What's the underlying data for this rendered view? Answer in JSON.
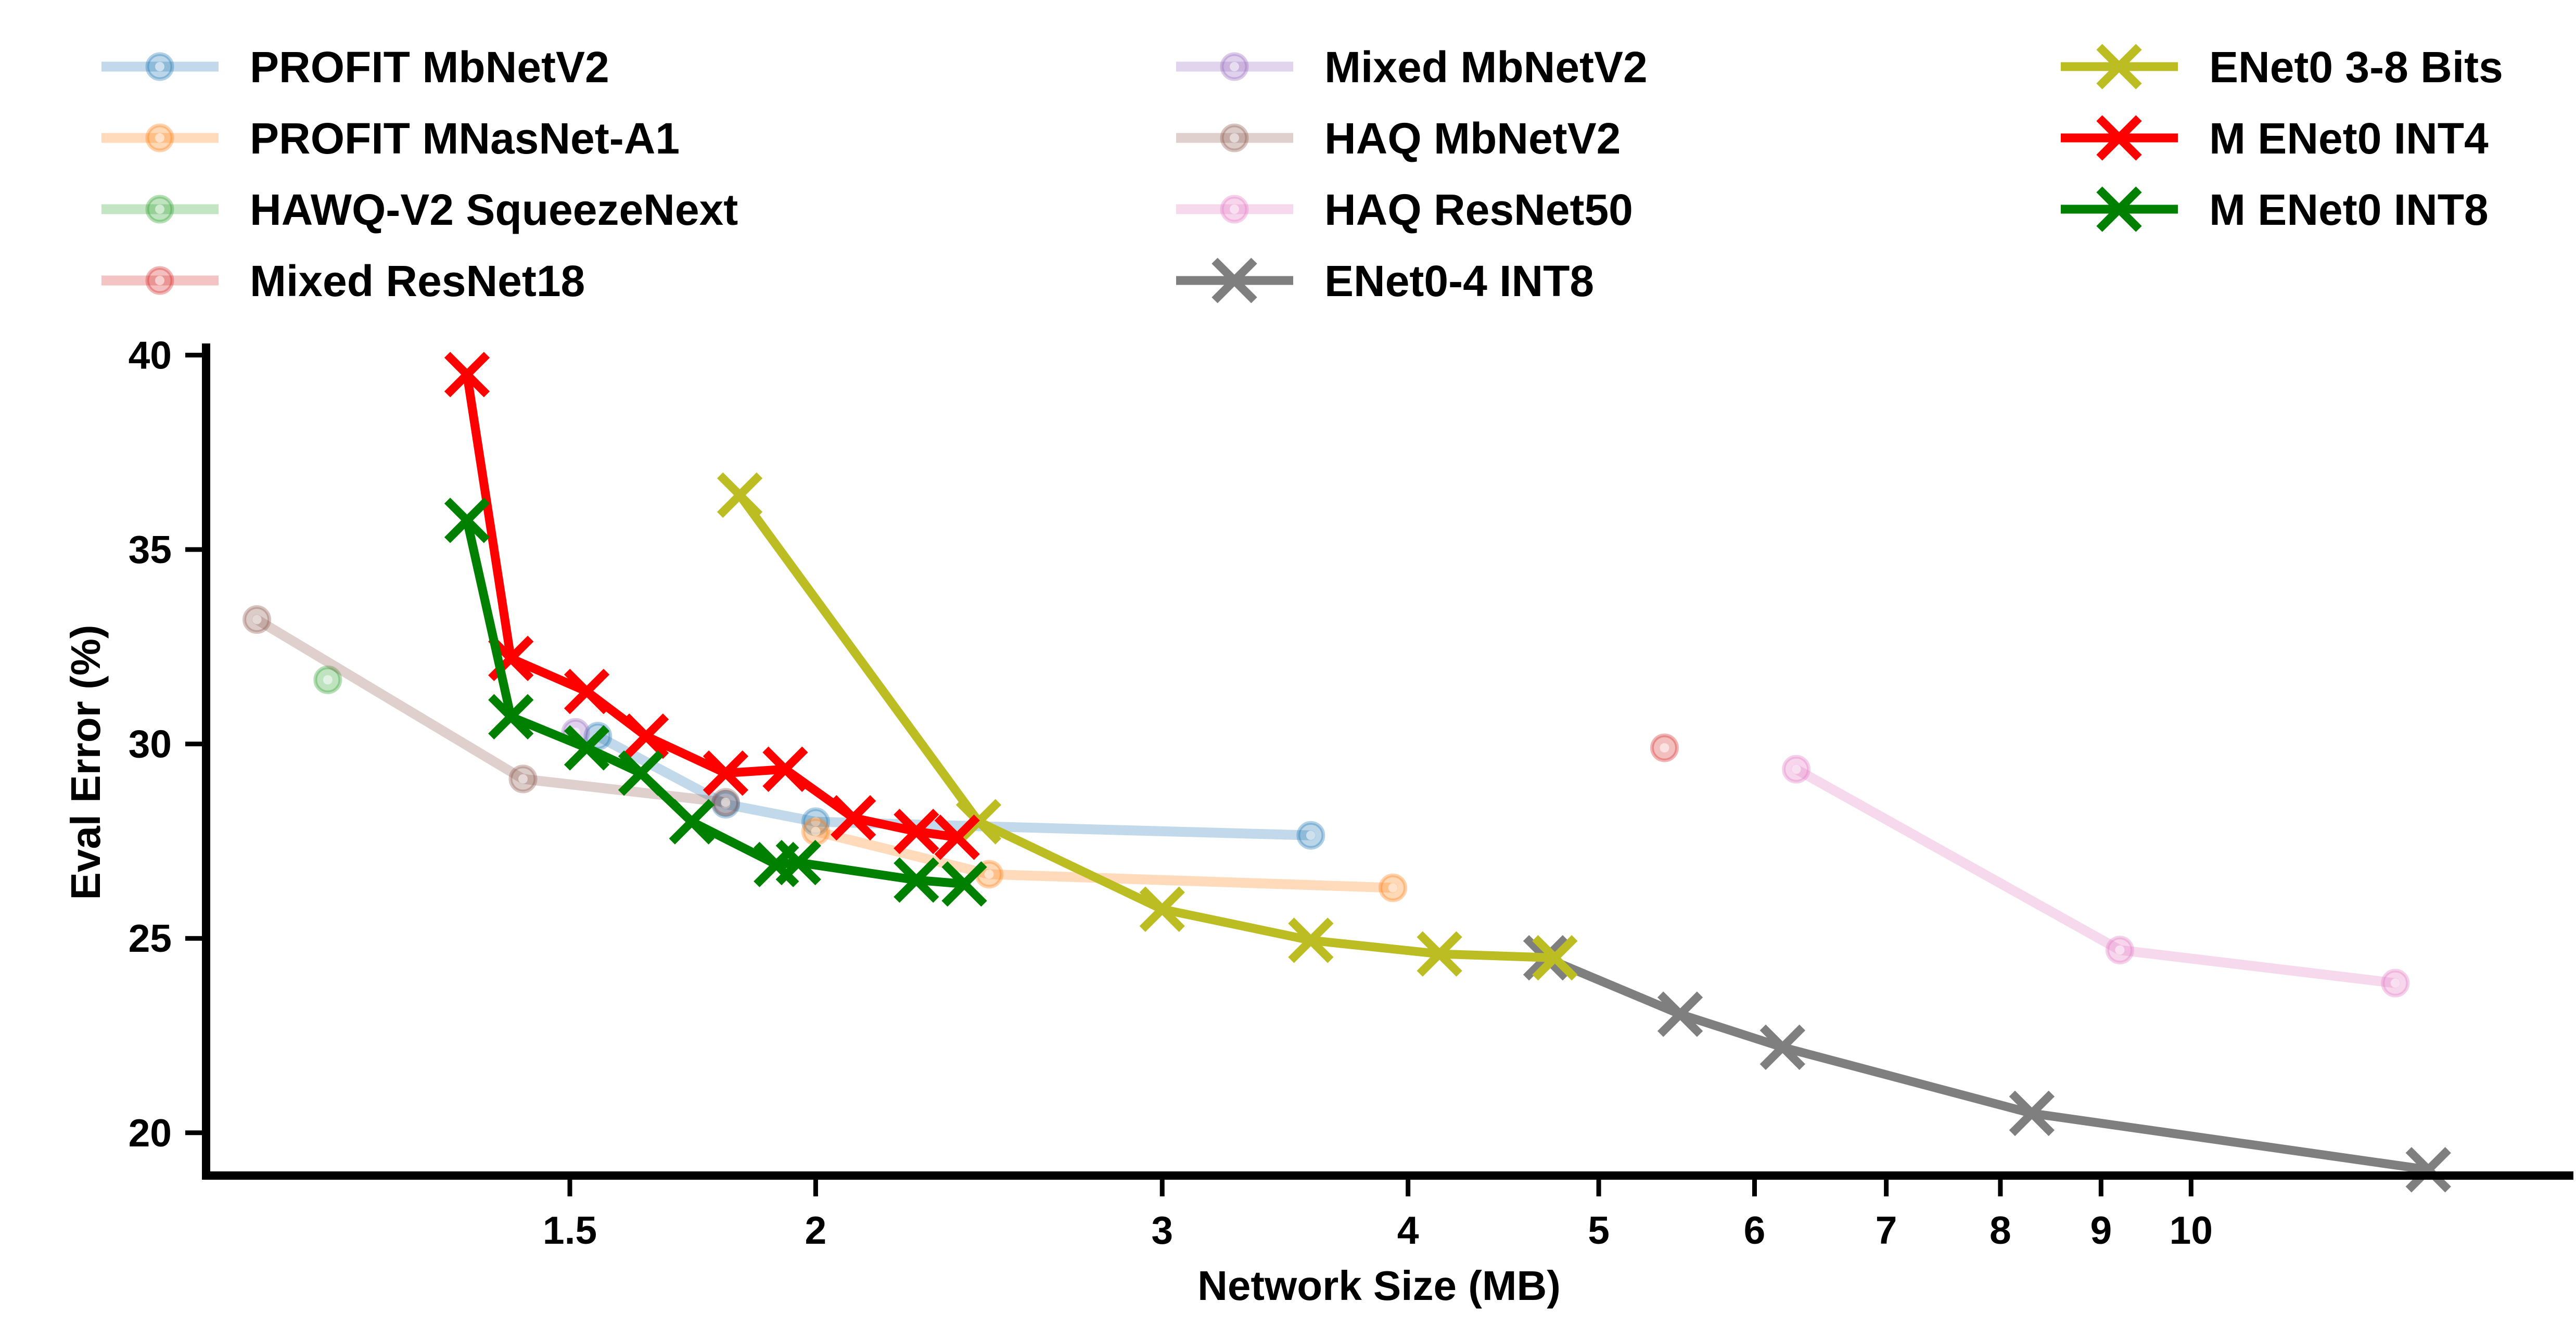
{
  "chart_data": {
    "type": "line",
    "xlabel": "Network Size (MB)",
    "ylabel": "Eval Error (%)",
    "x_scale": "log",
    "xlim": [
      0.98,
      15.5
    ],
    "ylim": [
      18.9,
      40.3
    ],
    "x_ticks": [
      1.5,
      2,
      3,
      4,
      5,
      6,
      7,
      8,
      9,
      10
    ],
    "x_tick_labels": [
      "1.5",
      "2",
      "3",
      "4",
      "5",
      "6",
      "7",
      "8",
      "9",
      "10"
    ],
    "y_ticks": [
      20,
      25,
      30,
      35,
      40
    ],
    "y_tick_labels": [
      "20",
      "25",
      "30",
      "35",
      "40"
    ],
    "grid": false,
    "legend_position": "top",
    "series": [
      {
        "name": "PROFIT MbNetV2",
        "color": "#1f77b4",
        "style": "faded-circle",
        "points": [
          [
            1.55,
            30.2
          ],
          [
            1.8,
            28.45
          ],
          [
            2.0,
            28.0
          ],
          [
            3.57,
            27.65
          ]
        ]
      },
      {
        "name": "PROFIT MNasNet-A1",
        "color": "#ff7f0e",
        "style": "faded-circle",
        "points": [
          [
            2.0,
            27.75
          ],
          [
            2.45,
            26.65
          ],
          [
            3.93,
            26.3
          ]
        ]
      },
      {
        "name": "HAWQ-V2 SqueezeNext",
        "color": "#2ca02c",
        "style": "faded-circle",
        "points": [
          [
            1.13,
            31.65
          ]
        ]
      },
      {
        "name": "Mixed ResNet18",
        "color": "#d62728",
        "style": "faded-circle",
        "points": [
          [
            5.4,
            29.9
          ]
        ]
      },
      {
        "name": "Mixed MbNetV2",
        "color": "#9467bd",
        "style": "faded-circle",
        "points": [
          [
            1.51,
            30.3
          ]
        ]
      },
      {
        "name": "HAQ MbNetV2",
        "color": "#8c564b",
        "style": "faded-circle",
        "points": [
          [
            1.04,
            33.2
          ],
          [
            1.42,
            29.1
          ],
          [
            1.8,
            28.5
          ]
        ]
      },
      {
        "name": "HAQ ResNet50",
        "color": "#e377c2",
        "style": "faded-circle",
        "points": [
          [
            6.3,
            29.35
          ],
          [
            9.2,
            24.7
          ],
          [
            12.7,
            23.85
          ]
        ]
      },
      {
        "name": "ENet0-4 INT8",
        "color": "#7f7f7f",
        "style": "x",
        "points": [
          [
            4.7,
            24.5
          ],
          [
            5.5,
            23.05
          ],
          [
            6.2,
            22.2
          ],
          [
            8.3,
            20.5
          ],
          [
            13.2,
            19.05
          ]
        ]
      },
      {
        "name": "ENet0 3-8 Bits",
        "color": "#bcbd22",
        "style": "x",
        "points": [
          [
            1.83,
            36.4
          ],
          [
            2.42,
            28.0
          ],
          [
            3.0,
            25.75
          ],
          [
            3.57,
            24.95
          ],
          [
            4.15,
            24.6
          ],
          [
            4.75,
            24.5
          ]
        ]
      },
      {
        "name": "M ENet0 INT4",
        "color": "#ff0000",
        "style": "x",
        "points": [
          [
            1.33,
            39.5
          ],
          [
            1.4,
            32.2
          ],
          [
            1.53,
            31.35
          ],
          [
            1.64,
            30.2
          ],
          [
            1.8,
            29.25
          ],
          [
            1.93,
            29.35
          ],
          [
            2.09,
            28.1
          ],
          [
            2.25,
            27.75
          ],
          [
            2.36,
            27.6
          ]
        ]
      },
      {
        "name": "M ENet0 INT8",
        "color": "#008000",
        "style": "x",
        "points": [
          [
            1.33,
            35.75
          ],
          [
            1.4,
            30.7
          ],
          [
            1.53,
            29.9
          ],
          [
            1.63,
            29.25
          ],
          [
            1.73,
            28.0
          ],
          [
            1.91,
            26.9
          ],
          [
            1.96,
            26.95
          ],
          [
            2.25,
            26.5
          ],
          [
            2.38,
            26.4
          ]
        ]
      }
    ]
  }
}
